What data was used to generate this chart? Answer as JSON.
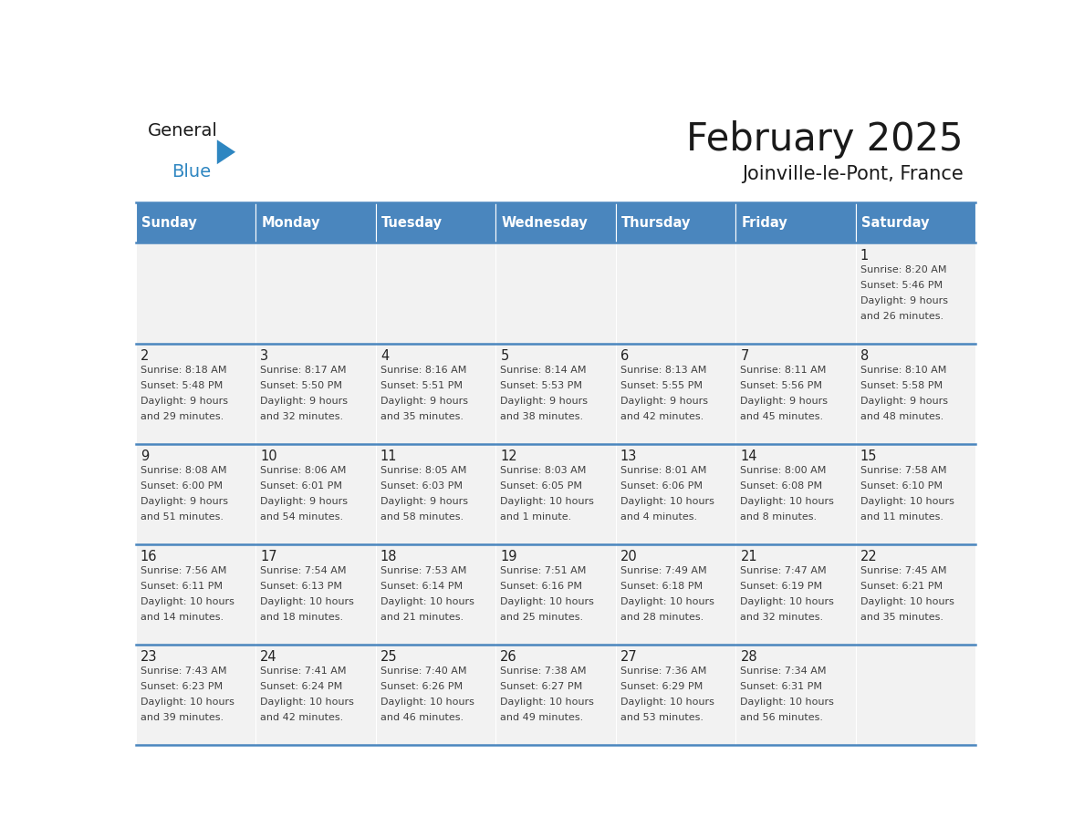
{
  "title": "February 2025",
  "subtitle": "Joinville-le-Pont, France",
  "days_of_week": [
    "Sunday",
    "Monday",
    "Tuesday",
    "Wednesday",
    "Thursday",
    "Friday",
    "Saturday"
  ],
  "header_bg": "#4A86BE",
  "header_text": "#FFFFFF",
  "cell_bg": "#F2F2F2",
  "grid_line_color": "#4A86BE",
  "text_color": "#404040",
  "day_num_color": "#222222",
  "title_color": "#1a1a1a",
  "subtitle_color": "#1a1a1a",
  "logo_general_color": "#1a1a1a",
  "logo_blue_color": "#2E86C1",
  "logo_tri_color": "#2E86C1",
  "calendar": [
    [
      null,
      null,
      null,
      null,
      null,
      null,
      {
        "day": "1",
        "sunrise": "8:20 AM",
        "sunset": "5:46 PM",
        "daylight": "9 hours",
        "daylight2": "and 26 minutes."
      }
    ],
    [
      {
        "day": "2",
        "sunrise": "8:18 AM",
        "sunset": "5:48 PM",
        "daylight": "9 hours",
        "daylight2": "and 29 minutes."
      },
      {
        "day": "3",
        "sunrise": "8:17 AM",
        "sunset": "5:50 PM",
        "daylight": "9 hours",
        "daylight2": "and 32 minutes."
      },
      {
        "day": "4",
        "sunrise": "8:16 AM",
        "sunset": "5:51 PM",
        "daylight": "9 hours",
        "daylight2": "and 35 minutes."
      },
      {
        "day": "5",
        "sunrise": "8:14 AM",
        "sunset": "5:53 PM",
        "daylight": "9 hours",
        "daylight2": "and 38 minutes."
      },
      {
        "day": "6",
        "sunrise": "8:13 AM",
        "sunset": "5:55 PM",
        "daylight": "9 hours",
        "daylight2": "and 42 minutes."
      },
      {
        "day": "7",
        "sunrise": "8:11 AM",
        "sunset": "5:56 PM",
        "daylight": "9 hours",
        "daylight2": "and 45 minutes."
      },
      {
        "day": "8",
        "sunrise": "8:10 AM",
        "sunset": "5:58 PM",
        "daylight": "9 hours",
        "daylight2": "and 48 minutes."
      }
    ],
    [
      {
        "day": "9",
        "sunrise": "8:08 AM",
        "sunset": "6:00 PM",
        "daylight": "9 hours",
        "daylight2": "and 51 minutes."
      },
      {
        "day": "10",
        "sunrise": "8:06 AM",
        "sunset": "6:01 PM",
        "daylight": "9 hours",
        "daylight2": "and 54 minutes."
      },
      {
        "day": "11",
        "sunrise": "8:05 AM",
        "sunset": "6:03 PM",
        "daylight": "9 hours",
        "daylight2": "and 58 minutes."
      },
      {
        "day": "12",
        "sunrise": "8:03 AM",
        "sunset": "6:05 PM",
        "daylight": "10 hours",
        "daylight2": "and 1 minute."
      },
      {
        "day": "13",
        "sunrise": "8:01 AM",
        "sunset": "6:06 PM",
        "daylight": "10 hours",
        "daylight2": "and 4 minutes."
      },
      {
        "day": "14",
        "sunrise": "8:00 AM",
        "sunset": "6:08 PM",
        "daylight": "10 hours",
        "daylight2": "and 8 minutes."
      },
      {
        "day": "15",
        "sunrise": "7:58 AM",
        "sunset": "6:10 PM",
        "daylight": "10 hours",
        "daylight2": "and 11 minutes."
      }
    ],
    [
      {
        "day": "16",
        "sunrise": "7:56 AM",
        "sunset": "6:11 PM",
        "daylight": "10 hours",
        "daylight2": "and 14 minutes."
      },
      {
        "day": "17",
        "sunrise": "7:54 AM",
        "sunset": "6:13 PM",
        "daylight": "10 hours",
        "daylight2": "and 18 minutes."
      },
      {
        "day": "18",
        "sunrise": "7:53 AM",
        "sunset": "6:14 PM",
        "daylight": "10 hours",
        "daylight2": "and 21 minutes."
      },
      {
        "day": "19",
        "sunrise": "7:51 AM",
        "sunset": "6:16 PM",
        "daylight": "10 hours",
        "daylight2": "and 25 minutes."
      },
      {
        "day": "20",
        "sunrise": "7:49 AM",
        "sunset": "6:18 PM",
        "daylight": "10 hours",
        "daylight2": "and 28 minutes."
      },
      {
        "day": "21",
        "sunrise": "7:47 AM",
        "sunset": "6:19 PM",
        "daylight": "10 hours",
        "daylight2": "and 32 minutes."
      },
      {
        "day": "22",
        "sunrise": "7:45 AM",
        "sunset": "6:21 PM",
        "daylight": "10 hours",
        "daylight2": "and 35 minutes."
      }
    ],
    [
      {
        "day": "23",
        "sunrise": "7:43 AM",
        "sunset": "6:23 PM",
        "daylight": "10 hours",
        "daylight2": "and 39 minutes."
      },
      {
        "day": "24",
        "sunrise": "7:41 AM",
        "sunset": "6:24 PM",
        "daylight": "10 hours",
        "daylight2": "and 42 minutes."
      },
      {
        "day": "25",
        "sunrise": "7:40 AM",
        "sunset": "6:26 PM",
        "daylight": "10 hours",
        "daylight2": "and 46 minutes."
      },
      {
        "day": "26",
        "sunrise": "7:38 AM",
        "sunset": "6:27 PM",
        "daylight": "10 hours",
        "daylight2": "and 49 minutes."
      },
      {
        "day": "27",
        "sunrise": "7:36 AM",
        "sunset": "6:29 PM",
        "daylight": "10 hours",
        "daylight2": "and 53 minutes."
      },
      {
        "day": "28",
        "sunrise": "7:34 AM",
        "sunset": "6:31 PM",
        "daylight": "10 hours",
        "daylight2": "and 56 minutes."
      },
      null
    ]
  ]
}
